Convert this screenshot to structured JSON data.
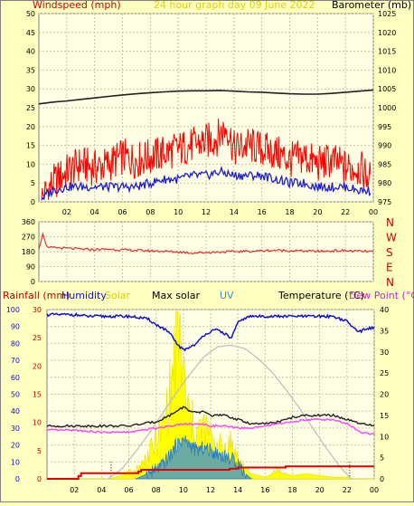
{
  "colors": {
    "background": "#ffffc0",
    "plot_bg": "#ffffe6",
    "grid": "#c6c6a0",
    "axis": "#000000",
    "windspeed": "#ff0000",
    "wind_avg": "#1f1fd2",
    "barometer": "#202020",
    "direction": "#e03030",
    "humidity": "#1010d0",
    "solar": "#ffff00",
    "max_solar": "#c0c0c0",
    "uv": "#3a8fd8",
    "temperature": "#202020",
    "dew_point": "#ff40ff",
    "rainfall": "#dd0000",
    "rain_label": "#c00000",
    "title": "#e0d000"
  },
  "chart_data": [
    {
      "type": "line",
      "title": "24 hour graph day   09 June 2022",
      "ylabel_left": "Windspeed (mph)",
      "ylabel_right": "Barometer (mb)",
      "x_ticks": [
        "02",
        "04",
        "06",
        "08",
        "10",
        "12",
        "14",
        "16",
        "18",
        "20",
        "22",
        "00"
      ],
      "x_range": [
        23.0,
        48.0
      ],
      "y_left_ticks": [
        "0",
        "5",
        "10",
        "15",
        "20",
        "25",
        "30",
        "35",
        "40",
        "45",
        "50"
      ],
      "y_left_range": [
        0,
        50
      ],
      "y_right_ticks": [
        "975",
        "980",
        "985",
        "990",
        "995",
        "1000",
        "1005",
        "1010",
        "1015",
        "1020",
        "1025"
      ],
      "y_right_range": [
        975,
        1025
      ],
      "grid": true,
      "series": [
        {
          "name": "Windspeed",
          "color": "windspeed",
          "axis": "left",
          "x": [
            0.2,
            1,
            2,
            3,
            4,
            5,
            6,
            7,
            8,
            9,
            10,
            11,
            12,
            12.8,
            13.5,
            14,
            15,
            16,
            17,
            18,
            19,
            20,
            21,
            22,
            23,
            23.8
          ],
          "y": [
            1,
            5,
            8,
            10,
            9,
            10,
            12,
            11,
            12,
            13,
            14,
            15,
            16,
            17,
            20,
            14,
            15,
            14,
            13,
            11,
            12,
            10,
            11,
            9,
            9,
            6
          ]
        },
        {
          "name": "Average wind",
          "color": "wind_avg",
          "axis": "left",
          "x": [
            0.2,
            1,
            2,
            3,
            4,
            5,
            6,
            7,
            8,
            9,
            10,
            11,
            12,
            13,
            14,
            15,
            16,
            17,
            18,
            19,
            20,
            21,
            22,
            23,
            23.8
          ],
          "y": [
            1,
            3,
            4,
            4,
            4,
            4,
            4,
            4,
            5,
            6,
            6,
            7,
            7,
            8,
            7,
            7,
            7,
            6,
            5,
            5,
            4,
            4,
            4,
            3,
            3
          ]
        },
        {
          "name": "Barometer",
          "color": "barometer",
          "axis": "right",
          "x": [
            0,
            1,
            2,
            3,
            4,
            5,
            6,
            7,
            8,
            9,
            10,
            11,
            12,
            13,
            14,
            15,
            16,
            17,
            18,
            19,
            20,
            21,
            22,
            23,
            24
          ],
          "y": [
            1001.0,
            1001.5,
            1001.8,
            1002.2,
            1002.6,
            1003.0,
            1003.4,
            1003.7,
            1004.0,
            1004.2,
            1004.4,
            1004.5,
            1004.5,
            1004.6,
            1004.4,
            1004.2,
            1004.1,
            1003.9,
            1003.7,
            1003.6,
            1003.6,
            1003.8,
            1004.1,
            1004.4,
            1004.7
          ]
        }
      ]
    },
    {
      "type": "line",
      "y_left_ticks": [
        "0",
        "90",
        "180",
        "270",
        "360"
      ],
      "y_left_range": [
        0,
        360
      ],
      "y_right_labels": [
        "N",
        "W",
        "S",
        "E",
        "N"
      ],
      "x_ticks": [],
      "grid": true,
      "series": [
        {
          "name": "Wind direction",
          "color": "direction",
          "x": [
            0,
            0.3,
            0.6,
            1,
            2,
            3,
            4,
            5,
            6,
            7,
            8,
            9,
            10,
            11,
            12,
            13,
            14,
            15,
            16,
            17,
            18,
            19,
            20,
            21,
            22,
            23,
            24
          ],
          "y": [
            200,
            290,
            200,
            205,
            200,
            195,
            192,
            195,
            190,
            188,
            185,
            182,
            178,
            172,
            175,
            178,
            180,
            182,
            185,
            188,
            186,
            184,
            182,
            184,
            186,
            182,
            180
          ]
        }
      ]
    },
    {
      "type": "line",
      "labels": [
        "Rainfall (mm)",
        "Humidity",
        "Solar",
        "Max solar",
        "UV",
        "Temperature (°C)",
        "Dew Point (°C)"
      ],
      "x_ticks": [
        "02",
        "04",
        "06",
        "08",
        "10",
        "12",
        "14",
        "16",
        "18",
        "20",
        "22",
        "00"
      ],
      "y_humidity_ticks": [
        "0",
        "10",
        "20",
        "30",
        "40",
        "50",
        "60",
        "70",
        "80",
        "90",
        "100"
      ],
      "y_humidity_range": [
        0,
        100
      ],
      "y_rain_ticks": [
        "0",
        "5",
        "10",
        "15",
        "20",
        "25",
        "30"
      ],
      "y_rain_range": [
        0,
        30
      ],
      "y_temp_ticks": [
        "0",
        "5",
        "10",
        "15",
        "20",
        "25",
        "30",
        "35",
        "40"
      ],
      "y_temp_range": [
        0,
        40
      ],
      "grid": true,
      "series": [
        {
          "name": "Humidity",
          "color": "humidity",
          "axis": "humidity",
          "x": [
            0,
            1,
            2,
            3,
            4,
            5,
            6,
            7,
            7.5,
            8,
            8.5,
            9,
            9.5,
            10,
            10.5,
            11,
            11.5,
            12,
            12.5,
            13,
            13.5,
            14,
            14.5,
            15,
            16,
            17,
            18,
            19,
            20,
            21,
            22,
            22.5,
            23,
            23.5,
            24
          ],
          "y": [
            97,
            97,
            97,
            96,
            96,
            96,
            96,
            95,
            94,
            91,
            89,
            86,
            80,
            76,
            78,
            80,
            85,
            87,
            88,
            86,
            83,
            92,
            95,
            96,
            96,
            96,
            96,
            96,
            96,
            96,
            93,
            89,
            87,
            89,
            89
          ]
        },
        {
          "name": "Solar",
          "color": "solar",
          "axis": "humidity",
          "x": [
            0,
            4.5,
            5.5,
            6.5,
            7,
            7.5,
            8,
            8.5,
            9,
            9.3,
            9.6,
            9.9,
            10.2,
            10.5,
            11,
            11.5,
            12,
            12.5,
            13,
            13.5,
            14,
            14.5,
            15,
            15.5,
            16,
            17,
            17.5,
            18,
            19,
            20,
            21,
            22,
            22.5,
            24
          ],
          "y": [
            0,
            0,
            2,
            5,
            9,
            15,
            22,
            30,
            50,
            65,
            95,
            70,
            45,
            35,
            28,
            30,
            25,
            20,
            18,
            22,
            12,
            6,
            3,
            2,
            1,
            5,
            3,
            2,
            3,
            2,
            1,
            1,
            0,
            0
          ]
        },
        {
          "name": "Max solar",
          "color": "max_solar",
          "axis": "humidity",
          "x": [
            4.5,
            5.5,
            6.5,
            7.5,
            8.5,
            9.5,
            10.5,
            11.5,
            12.5,
            13.5,
            14.5,
            15.5,
            16.5,
            17.5,
            18.5,
            19.5,
            20.5,
            21.5,
            22.3
          ],
          "y": [
            0,
            6,
            16,
            27,
            39,
            51,
            62,
            72,
            78,
            79,
            77,
            71,
            63,
            53,
            42,
            30,
            18,
            7,
            0
          ]
        },
        {
          "name": "UV",
          "color": "uv",
          "axis": "rain",
          "x": [
            0,
            6.5,
            7,
            7.5,
            8,
            8.5,
            9,
            9.5,
            10,
            10.5,
            11,
            11.5,
            12,
            12.5,
            13,
            13.5,
            14,
            14.5,
            15,
            24
          ],
          "y": [
            0,
            0,
            0.5,
            1,
            1.5,
            2.5,
            4,
            6,
            7,
            6,
            5,
            5.5,
            5,
            4.5,
            4,
            3.5,
            3,
            1,
            0,
            0
          ]
        },
        {
          "name": "Temperature",
          "color": "temperature",
          "axis": "temp",
          "x": [
            0,
            2,
            4,
            6,
            7,
            8,
            9,
            9.5,
            10,
            10.5,
            11,
            11.5,
            12,
            13,
            14,
            15,
            16,
            17,
            18,
            19,
            20,
            21,
            22,
            23,
            24
          ],
          "y": [
            12.5,
            12.5,
            12.5,
            12.5,
            13,
            13.5,
            15,
            16,
            17,
            16,
            15.5,
            16,
            15,
            15,
            14,
            13,
            13,
            13.5,
            14.5,
            15,
            15,
            15,
            14,
            13,
            12.5
          ]
        },
        {
          "name": "Dew Point",
          "color": "dew_point",
          "axis": "temp",
          "x": [
            0,
            2,
            4,
            6,
            8,
            9,
            10,
            11,
            12,
            13,
            14,
            15,
            16,
            17,
            18,
            19,
            20,
            21,
            22,
            23,
            24
          ],
          "y": [
            11.5,
            11.5,
            11,
            11,
            12,
            12.5,
            13,
            13,
            12.5,
            12.5,
            12,
            12,
            12.5,
            13,
            13.5,
            14,
            14,
            14,
            13,
            11,
            10.5
          ]
        },
        {
          "name": "Rainfall",
          "color": "rainfall",
          "axis": "rain",
          "step": true,
          "x": [
            0,
            2.3,
            2.5,
            3,
            6.5,
            6.7,
            6.9,
            13.2,
            13.4,
            14.0,
            14.5,
            17.5,
            24
          ],
          "y": [
            0,
            0.5,
            1,
            1,
            1,
            1.3,
            1.6,
            1.6,
            1.8,
            2.0,
            2.0,
            2.2,
            2.2
          ]
        }
      ]
    }
  ]
}
